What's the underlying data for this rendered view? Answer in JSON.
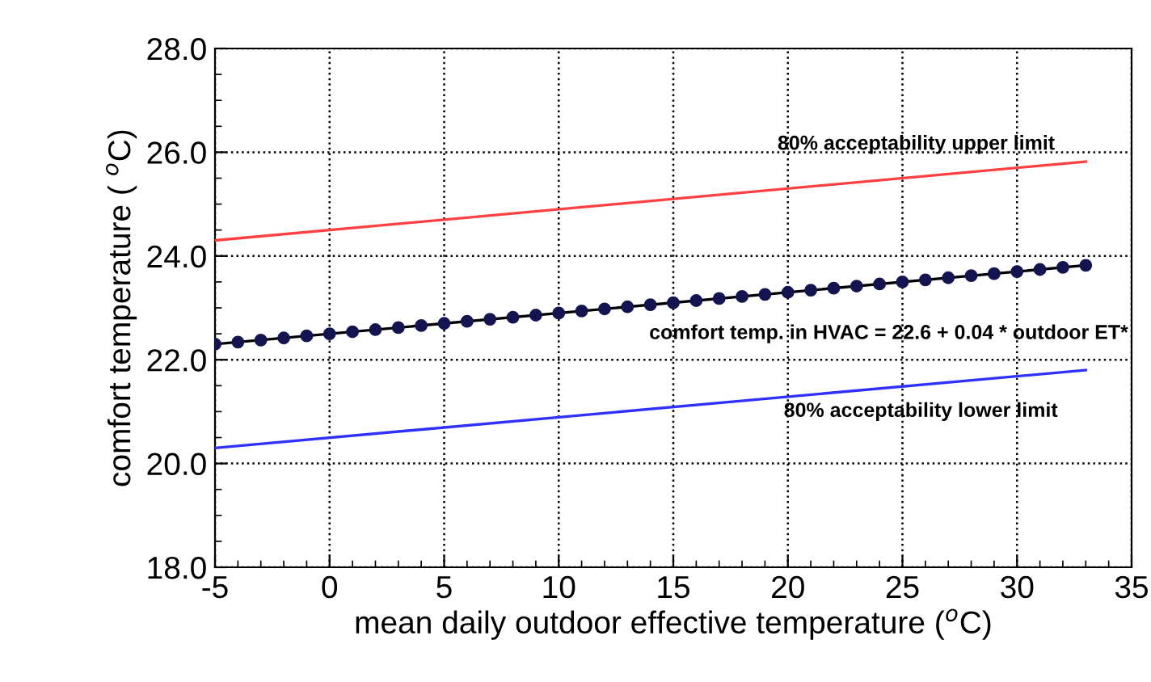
{
  "chart_data": {
    "type": "line",
    "xlabel": "mean daily outdoor effective temperature ($^{o}$C)",
    "ylabel": "comfort temperature ( $^{o}$C)",
    "xlim": [
      -5,
      35
    ],
    "xticks": [
      -5,
      0,
      5,
      10,
      15,
      20,
      25,
      30,
      35
    ],
    "ylim": [
      18,
      28
    ],
    "yticks": [
      {
        "value": 18,
        "label": "18.0"
      },
      {
        "value": 20,
        "label": "20.0"
      },
      {
        "value": 22,
        "label": "22.0"
      },
      {
        "value": 24,
        "label": "24.0"
      },
      {
        "value": 26,
        "label": "26.0"
      },
      {
        "value": 28,
        "label": "28.0"
      }
    ],
    "grid": true,
    "legend": false,
    "series": [
      {
        "color": "#ff4040",
        "x": [
          -5,
          33
        ],
        "values": [
          24.3,
          25.82
        ],
        "marker": "none"
      },
      {
        "color": "#3030ff",
        "x": [
          -5,
          33
        ],
        "values": [
          20.3,
          21.8
        ],
        "marker": "none"
      },
      {
        "color": "#000000",
        "x": [
          -5,
          33
        ],
        "values": [
          22.3,
          23.82
        ],
        "marker": "none"
      },
      {
        "type": "scatter",
        "color": "#141450",
        "marker": "circle",
        "x": [
          -5,
          -4,
          -3,
          -2,
          -1,
          0,
          1,
          2,
          3,
          4,
          5,
          6,
          7,
          8,
          9,
          10,
          11,
          12,
          13,
          14,
          15,
          16,
          17,
          18,
          19,
          20,
          21,
          22,
          23,
          24,
          25,
          26,
          27,
          28,
          29,
          30,
          31,
          32,
          33
        ],
        "values": [
          22.3,
          22.34,
          22.38,
          22.42,
          22.46,
          22.5,
          22.54,
          22.58,
          22.62,
          22.66,
          22.7,
          22.74,
          22.78,
          22.82,
          22.86,
          22.9,
          22.94,
          22.98,
          23.02,
          23.06,
          23.1,
          23.14,
          23.18,
          23.22,
          23.26,
          23.3,
          23.34,
          23.38,
          23.42,
          23.46,
          23.5,
          23.54,
          23.58,
          23.62,
          23.66,
          23.7,
          23.74,
          23.78,
          23.82
        ]
      }
    ],
    "annotations": [
      "80% acceptability upper limit",
      "comfort temp. in HVAC = 22.6 + 0.04 * outdoor ET*",
      "80% acceptability lower limit"
    ]
  }
}
